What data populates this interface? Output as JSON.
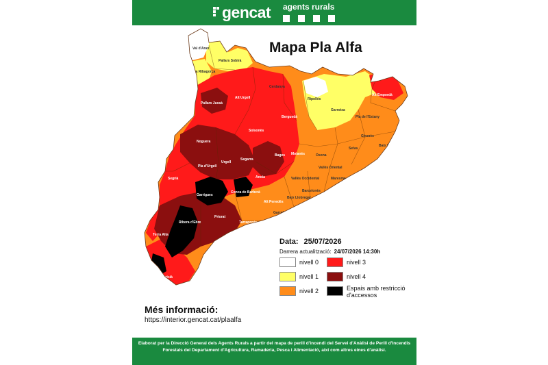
{
  "header": {
    "brand": "gencat",
    "subtitle": "agents rurals",
    "brand_color": "#1a8a3f"
  },
  "map": {
    "title": "Mapa Pla Alfa",
    "level_colors": {
      "nivell_0": "#ffffff",
      "nivell_1": "#ffff66",
      "nivell_2": "#ff8c1a",
      "nivell_3": "#ff1a1a",
      "nivell_4": "#8b0f0f",
      "restriccio": "#000000"
    },
    "comarques": {
      "val_daran": "Val d'Aran",
      "pallars_sobira": "Pallars Sobirà",
      "alta_ribagorca": "Alta Ribagorça",
      "pallars_jussa": "Pallars Jussà",
      "alt_urgell": "Alt Urgell",
      "cerdanya": "Cerdanya",
      "ripolles": "Ripollès",
      "alt_emporda": "Alt Empordà",
      "garrotxa": "Garrotxa",
      "pla_estany": "Pla de l'Estany",
      "noguera": "Noguera",
      "solsones": "Solsonès",
      "bergueda": "Berguedà",
      "osona": "Osona",
      "girones": "Gironès",
      "baix_emporda": "Baix Empordà",
      "selva": "Selva",
      "bages": "Bages",
      "pla_urgell": "Pla d'Urgell",
      "urgell": "Urgell",
      "segarra": "Segarra",
      "anoia": "Anoia",
      "moianes": "Moianès",
      "valles_oriental": "Vallès Oriental",
      "valles_occidental": "Vallès Occidental",
      "maresme": "Maresme",
      "segria": "Segrià",
      "garrigues": "Garrigues",
      "conca_barbera": "Conca de Barberà",
      "alt_penedes": "Alt Penedès",
      "baix_llobregat": "Baix Llobregat",
      "barcelones": "Barcelonès",
      "garraf": "Garraf",
      "ribera_ebre": "Ribera d'Ebre",
      "priorat": "Priorat",
      "tarragones": "Tarragonès",
      "terra_alta": "Terra Alta",
      "montsia": "Montsià"
    }
  },
  "info": {
    "date_label": "Data:",
    "date_value": "25/07/2026",
    "update_label": "Darrera actualització:",
    "update_value": "24/07/2026 14:30h"
  },
  "legend": {
    "nivell_0": "nivell 0",
    "nivell_1": "nivell 1",
    "nivell_2": "nivell 2",
    "nivell_3": "nivell 3",
    "nivell_4": "nivell 4",
    "restriccio": "Espais amb restricció d'accessos"
  },
  "more": {
    "title": "Més informació:",
    "url": "https://interior.gencat.cat/plaalfa"
  },
  "footer": {
    "text": "Elaborat per la Direcció General dels Agents Rurals a partir del mapa de perill d'incendi del Servei d'Anàlisi de Perill d'Incendis Forestals del Departament d'Agricultura, Ramaderia, Pesca i Alimentació, així com altres eines d'anàlisi."
  }
}
